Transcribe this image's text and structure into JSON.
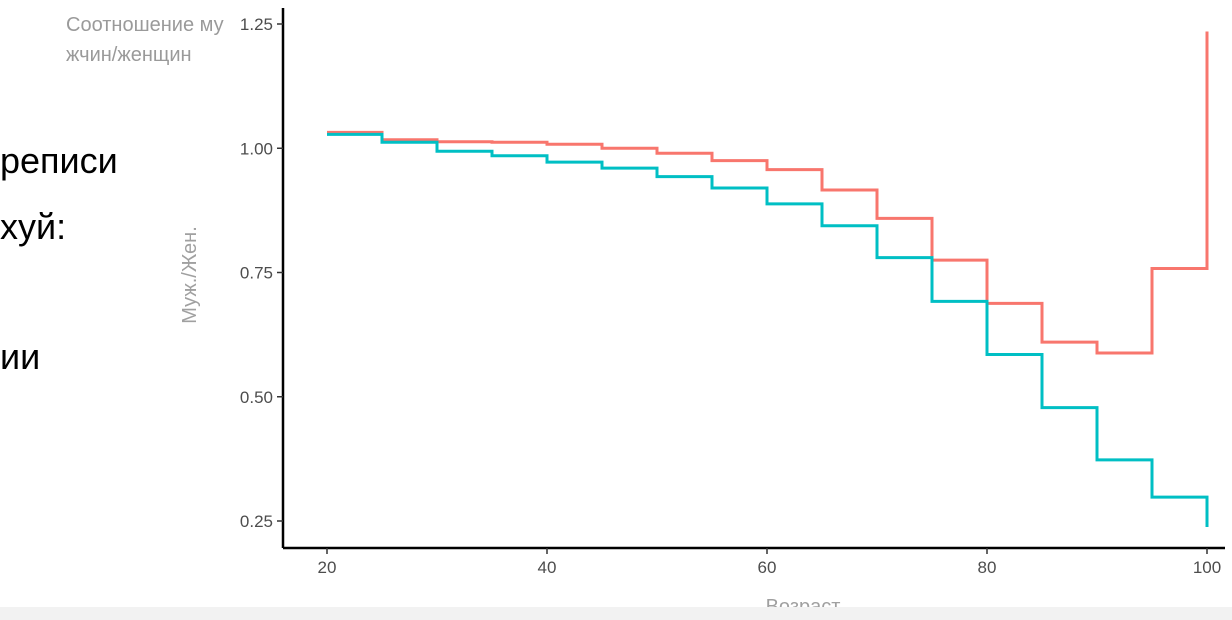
{
  "slide": {
    "line1": "реписи",
    "line2": "хуй:",
    "line3": "ии"
  },
  "chart_title": "Соотношение мужчин/женщин",
  "chart_data": {
    "type": "line",
    "step": true,
    "xlabel": "Возраст",
    "ylabel": "Муж./Жен.",
    "xlim": [
      20,
      100
    ],
    "ylim": [
      0.25,
      1.25
    ],
    "x_ticks": [
      "20",
      "40",
      "60",
      "80",
      "100"
    ],
    "y_ticks": [
      "0.25",
      "0.50",
      "0.75",
      "1.00",
      "1.25"
    ],
    "grid": false,
    "legend": "none",
    "series": [
      {
        "color": "#F8766D",
        "x": [
          20,
          25,
          30,
          35,
          40,
          45,
          50,
          55,
          60,
          65,
          70,
          75,
          80,
          85,
          90,
          95,
          100
        ],
        "y": [
          1.032,
          1.017,
          1.013,
          1.012,
          1.008,
          1.0,
          0.99,
          0.975,
          0.957,
          0.916,
          0.859,
          0.775,
          0.688,
          0.61,
          0.588,
          0.758,
          1.235
        ]
      },
      {
        "color": "#00BFC4",
        "x": [
          20,
          25,
          30,
          35,
          40,
          45,
          50,
          55,
          60,
          65,
          70,
          75,
          80,
          85,
          90,
          95,
          100
        ],
        "y": [
          1.028,
          1.012,
          0.994,
          0.985,
          0.972,
          0.96,
          0.943,
          0.92,
          0.888,
          0.844,
          0.78,
          0.692,
          0.585,
          0.478,
          0.373,
          0.298,
          0.238
        ]
      }
    ]
  }
}
